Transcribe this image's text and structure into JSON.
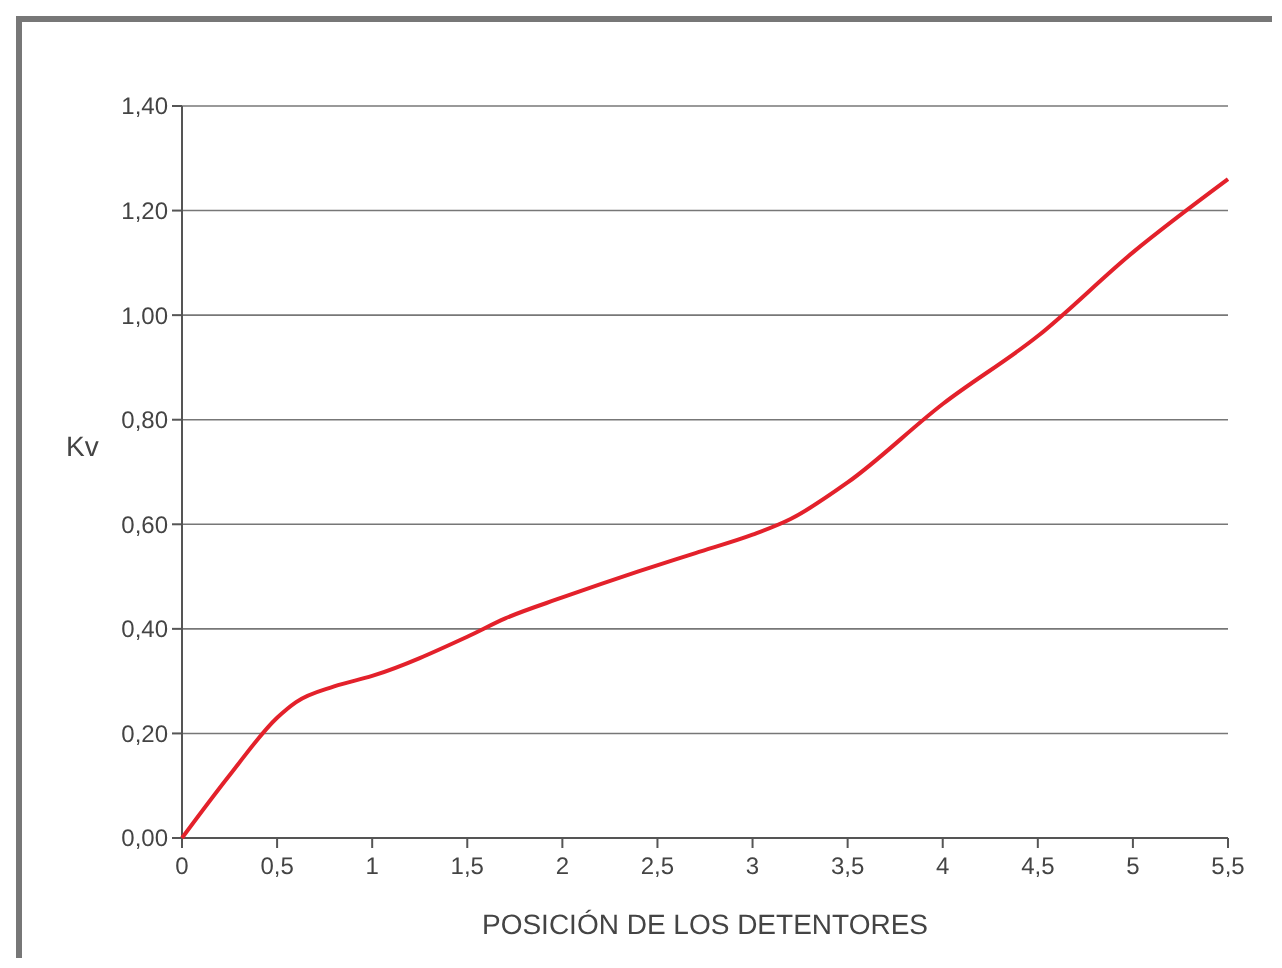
{
  "chart_data": {
    "type": "line",
    "xlabel": "POSICIÓN DE LOS DETENTORES",
    "ylabel": "Kv",
    "x": [
      0,
      0.25,
      0.5,
      0.6,
      0.8,
      1,
      1.5,
      1.7,
      2,
      2.4,
      2.7,
      3,
      3.2,
      3.5,
      4,
      4.5,
      5,
      5.5
    ],
    "series": [
      {
        "color": "#e3212b",
        "values": [
          0,
          0.12,
          0.23,
          0.26,
          0.29,
          0.31,
          0.385,
          0.42,
          0.46,
          0.51,
          0.545,
          0.58,
          0.61,
          0.68,
          0.83,
          0.96,
          1.12,
          1.26
        ]
      }
    ],
    "xlim": [
      0,
      5.5
    ],
    "ylim": [
      0,
      1.4
    ],
    "xticks": [
      0,
      {
        "value": 0.5,
        "label": "0,5"
      },
      1,
      {
        "value": 1.5,
        "label": "1,5"
      },
      2,
      {
        "value": 2.5,
        "label": "2,5"
      },
      3,
      {
        "value": 3.5,
        "label": "3,5"
      },
      4,
      {
        "value": 4.5,
        "label": "4,5"
      },
      5,
      {
        "value": 5.5,
        "label": "5,5"
      }
    ],
    "yticks": [
      {
        "value": 0,
        "label": "0,00"
      },
      {
        "value": 0.2,
        "label": "0,20"
      },
      {
        "value": 0.4,
        "label": "0,40"
      },
      {
        "value": 0.6,
        "label": "0,60"
      },
      {
        "value": 0.8,
        "label": "0,80"
      },
      {
        "value": 1.0,
        "label": "1,00"
      },
      {
        "value": 1.2,
        "label": "1,20"
      },
      {
        "value": 1.4,
        "label": "1,40"
      }
    ],
    "grid": "y",
    "marker": "none",
    "line_style": "solid"
  }
}
